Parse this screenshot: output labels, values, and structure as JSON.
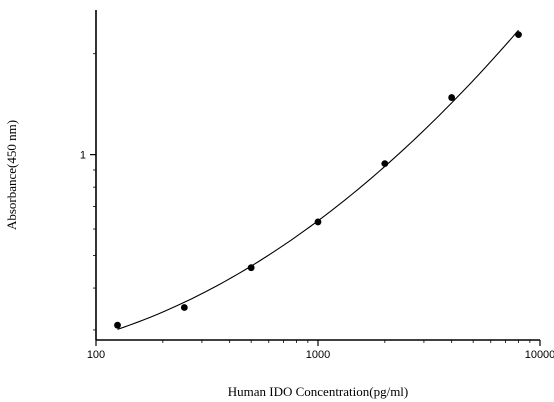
{
  "chart_data": {
    "type": "scatter",
    "title": "",
    "xlabel": "Human IDO Concentration(pg/ml)",
    "ylabel": "Absorbance(450 nm)",
    "xscale": "log",
    "yscale": "log",
    "xlim": [
      100,
      10000
    ],
    "ylim": [
      0.28,
      2.7
    ],
    "xticks": [
      "100",
      "1000",
      "10000"
    ],
    "yticks": [
      "1"
    ],
    "grid": false,
    "legend": "none",
    "series": [
      {
        "x": [
          125,
          250,
          500,
          1000,
          2000,
          4000,
          8000
        ],
        "y": [
          0.31,
          0.35,
          0.46,
          0.63,
          0.94,
          1.48,
          2.28
        ]
      }
    ],
    "fit_curve": true,
    "colors": {
      "marker": "#000000",
      "line": "#000000",
      "axis": "#000000"
    }
  }
}
